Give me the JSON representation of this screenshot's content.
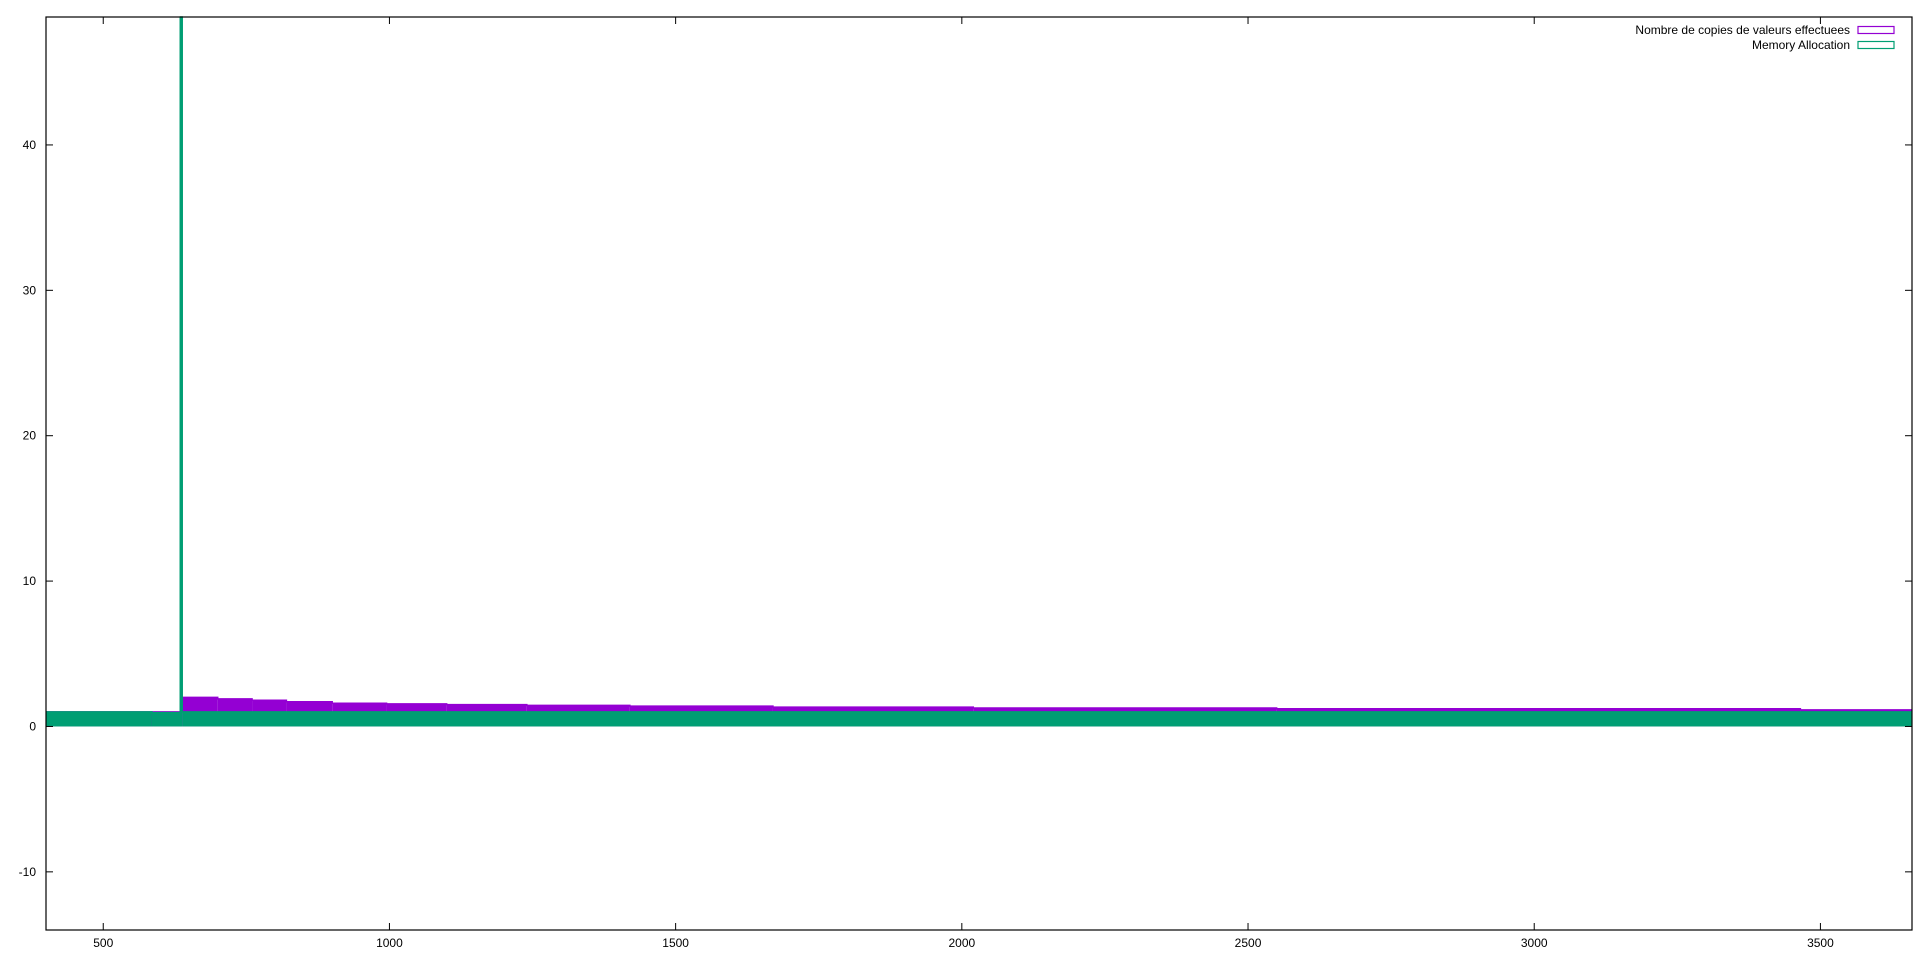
{
  "chart_data": {
    "type": "area",
    "title": "",
    "xlabel": "",
    "ylabel": "",
    "xlim": [
      400,
      3660
    ],
    "ylim": [
      -14,
      48.8
    ],
    "grid": false,
    "legend_position": "top-right",
    "xticks": [
      500,
      1000,
      1500,
      2000,
      2500,
      3000,
      3500
    ],
    "yticks": [
      -10,
      0,
      10,
      20,
      30,
      40
    ],
    "colors": {
      "copies": "#9400d3",
      "memory": "#009e73",
      "axis": "#000000"
    },
    "series": [
      {
        "name": "Nombre de copies de valeurs effectuees",
        "key": "copies",
        "step_x": [
          400,
          588,
          638,
          700,
          760,
          820,
          900,
          995,
          1100,
          1240,
          1420,
          1670,
          2020,
          2550,
          3465,
          3660
        ],
        "step_y": [
          1.0,
          1.0,
          2.0,
          1.9,
          1.8,
          1.7,
          1.6,
          1.55,
          1.5,
          1.45,
          1.4,
          1.33,
          1.27,
          1.22,
          1.14,
          1.14
        ]
      },
      {
        "name": "Memory Allocation",
        "key": "memory",
        "step_x": [
          400,
          585,
          635,
          638,
          3660
        ],
        "step_y": [
          1.0,
          0.95,
          48.8,
          1.0,
          1.0
        ]
      }
    ]
  }
}
